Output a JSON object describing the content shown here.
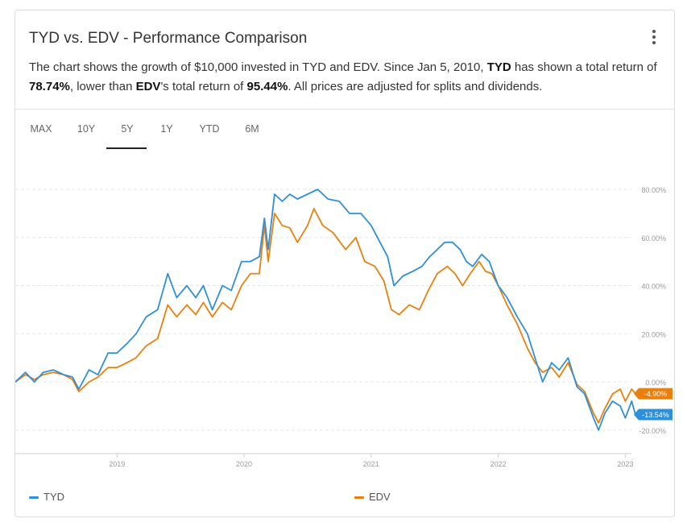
{
  "header": {
    "title": "TYD vs. EDV - Performance Comparison",
    "desc_1": "The chart shows the growth of $10,000 invested in TYD and EDV. Since Jan 5, 2010, ",
    "desc_ticker_a": "TYD",
    "desc_2": " has shown a total return of ",
    "desc_return_a": "78.74%",
    "desc_3": ", lower than ",
    "desc_ticker_b": "EDV",
    "desc_4": "'s total return of ",
    "desc_return_b": "95.44%",
    "desc_5": ". All prices are adjusted for splits and dividends."
  },
  "tabs": [
    {
      "label": "MAX",
      "active": false
    },
    {
      "label": "10Y",
      "active": false
    },
    {
      "label": "5Y",
      "active": true
    },
    {
      "label": "1Y",
      "active": false
    },
    {
      "label": "YTD",
      "active": false
    },
    {
      "label": "6M",
      "active": false
    }
  ],
  "chart_data": {
    "type": "line",
    "x_ticks": [
      "2019",
      "2020",
      "2021",
      "2022",
      "2023"
    ],
    "y_ticks": [
      "80.00%",
      "60.00%",
      "40.00%",
      "20.00%",
      "0.00%",
      "-20.00%"
    ],
    "ylim": [
      -30,
      92
    ],
    "xlim": [
      2018.2,
      2023.08
    ],
    "grid": true,
    "legend_position": "bottom",
    "series": [
      {
        "name": "TYD",
        "color": "#2f8fd8",
        "end_label": "-13.54%",
        "points": [
          [
            2018.2,
            0
          ],
          [
            2018.28,
            4
          ],
          [
            2018.35,
            0
          ],
          [
            2018.42,
            4
          ],
          [
            2018.5,
            5
          ],
          [
            2018.58,
            3
          ],
          [
            2018.65,
            2
          ],
          [
            2018.7,
            -3
          ],
          [
            2018.78,
            5
          ],
          [
            2018.85,
            3
          ],
          [
            2018.93,
            12
          ],
          [
            2019.0,
            12
          ],
          [
            2019.08,
            16
          ],
          [
            2019.15,
            20
          ],
          [
            2019.23,
            27
          ],
          [
            2019.32,
            30
          ],
          [
            2019.4,
            45
          ],
          [
            2019.47,
            35
          ],
          [
            2019.55,
            40
          ],
          [
            2019.62,
            35
          ],
          [
            2019.68,
            40
          ],
          [
            2019.75,
            30
          ],
          [
            2019.83,
            40
          ],
          [
            2019.9,
            38
          ],
          [
            2019.98,
            50
          ],
          [
            2020.05,
            50
          ],
          [
            2020.12,
            52
          ],
          [
            2020.16,
            68
          ],
          [
            2020.19,
            55
          ],
          [
            2020.24,
            78
          ],
          [
            2020.3,
            75
          ],
          [
            2020.36,
            78
          ],
          [
            2020.42,
            76
          ],
          [
            2020.5,
            78
          ],
          [
            2020.58,
            80
          ],
          [
            2020.66,
            76
          ],
          [
            2020.75,
            75
          ],
          [
            2020.83,
            70
          ],
          [
            2020.92,
            70
          ],
          [
            2021.0,
            65
          ],
          [
            2021.07,
            58
          ],
          [
            2021.13,
            52
          ],
          [
            2021.18,
            40
          ],
          [
            2021.25,
            44
          ],
          [
            2021.33,
            46
          ],
          [
            2021.4,
            48
          ],
          [
            2021.46,
            52
          ],
          [
            2021.52,
            55
          ],
          [
            2021.58,
            58
          ],
          [
            2021.64,
            58
          ],
          [
            2021.7,
            55
          ],
          [
            2021.75,
            50
          ],
          [
            2021.8,
            48
          ],
          [
            2021.87,
            53
          ],
          [
            2021.93,
            50
          ],
          [
            2022.0,
            40
          ],
          [
            2022.07,
            35
          ],
          [
            2022.15,
            27
          ],
          [
            2022.23,
            20
          ],
          [
            2022.29,
            10
          ],
          [
            2022.35,
            0
          ],
          [
            2022.42,
            8
          ],
          [
            2022.48,
            5
          ],
          [
            2022.55,
            10
          ],
          [
            2022.62,
            -2
          ],
          [
            2022.68,
            -5
          ],
          [
            2022.75,
            -15
          ],
          [
            2022.79,
            -20
          ],
          [
            2022.84,
            -13
          ],
          [
            2022.9,
            -8
          ],
          [
            2022.96,
            -10
          ],
          [
            2023.0,
            -15
          ],
          [
            2023.05,
            -8
          ],
          [
            2023.08,
            -13.54
          ]
        ]
      },
      {
        "name": "EDV",
        "color": "#e8800f",
        "end_label": "-4.90%",
        "points": [
          [
            2018.2,
            0
          ],
          [
            2018.28,
            3
          ],
          [
            2018.35,
            1
          ],
          [
            2018.42,
            3
          ],
          [
            2018.5,
            4
          ],
          [
            2018.58,
            3
          ],
          [
            2018.65,
            1
          ],
          [
            2018.7,
            -4
          ],
          [
            2018.78,
            0
          ],
          [
            2018.85,
            2
          ],
          [
            2018.93,
            6
          ],
          [
            2019.0,
            6
          ],
          [
            2019.08,
            8
          ],
          [
            2019.15,
            10
          ],
          [
            2019.23,
            15
          ],
          [
            2019.32,
            18
          ],
          [
            2019.4,
            32
          ],
          [
            2019.47,
            27
          ],
          [
            2019.55,
            32
          ],
          [
            2019.62,
            28
          ],
          [
            2019.68,
            33
          ],
          [
            2019.75,
            27
          ],
          [
            2019.83,
            33
          ],
          [
            2019.9,
            30
          ],
          [
            2019.98,
            40
          ],
          [
            2020.05,
            45
          ],
          [
            2020.12,
            45
          ],
          [
            2020.16,
            65
          ],
          [
            2020.19,
            50
          ],
          [
            2020.24,
            70
          ],
          [
            2020.3,
            65
          ],
          [
            2020.36,
            64
          ],
          [
            2020.42,
            58
          ],
          [
            2020.5,
            65
          ],
          [
            2020.55,
            72
          ],
          [
            2020.62,
            65
          ],
          [
            2020.7,
            62
          ],
          [
            2020.8,
            55
          ],
          [
            2020.88,
            60
          ],
          [
            2020.95,
            50
          ],
          [
            2021.03,
            48
          ],
          [
            2021.1,
            42
          ],
          [
            2021.16,
            30
          ],
          [
            2021.22,
            28
          ],
          [
            2021.3,
            32
          ],
          [
            2021.38,
            30
          ],
          [
            2021.45,
            38
          ],
          [
            2021.52,
            45
          ],
          [
            2021.6,
            48
          ],
          [
            2021.66,
            45
          ],
          [
            2021.72,
            40
          ],
          [
            2021.78,
            45
          ],
          [
            2021.85,
            50
          ],
          [
            2021.9,
            46
          ],
          [
            2021.95,
            45
          ],
          [
            2022.0,
            40
          ],
          [
            2022.07,
            32
          ],
          [
            2022.15,
            24
          ],
          [
            2022.23,
            14
          ],
          [
            2022.29,
            8
          ],
          [
            2022.35,
            4
          ],
          [
            2022.42,
            6
          ],
          [
            2022.48,
            2
          ],
          [
            2022.55,
            8
          ],
          [
            2022.62,
            -1
          ],
          [
            2022.68,
            -4
          ],
          [
            2022.75,
            -13
          ],
          [
            2022.79,
            -17
          ],
          [
            2022.84,
            -11
          ],
          [
            2022.9,
            -5
          ],
          [
            2022.96,
            -3
          ],
          [
            2023.0,
            -8
          ],
          [
            2023.05,
            -3
          ],
          [
            2023.08,
            -4.9
          ]
        ]
      }
    ]
  }
}
